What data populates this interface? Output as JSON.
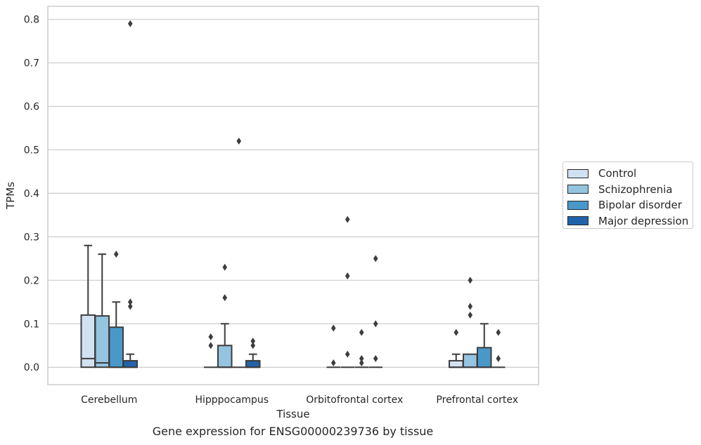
{
  "caption": "Gene expression for ENSG00000239736 by tissue",
  "chart_data": {
    "type": "box",
    "xlabel": "Tissue",
    "ylabel": "TPMs",
    "ylim": [
      -0.04,
      0.83
    ],
    "yticks": [
      0.0,
      0.1,
      0.2,
      0.3,
      0.4,
      0.5,
      0.6,
      0.7,
      0.8
    ],
    "ytick_labels": [
      "0.0",
      "0.1",
      "0.2",
      "0.3",
      "0.4",
      "0.5",
      "0.6",
      "0.7",
      "0.8"
    ],
    "grid": "horizontal",
    "legend_position": "right",
    "categories": [
      "Cerebellum",
      "Hipppocampus",
      "Orbitofrontal cortex",
      "Prefrontal cortex"
    ],
    "series": [
      {
        "name": "Control",
        "color": "#d0e1f2",
        "boxes": [
          {
            "q1": 0.0,
            "median": 0.02,
            "q3": 0.12,
            "whisker_low": 0.0,
            "whisker_high": 0.28,
            "outliers": []
          },
          {
            "q1": 0.0,
            "median": 0.0,
            "q3": 0.0,
            "whisker_low": 0.0,
            "whisker_high": 0.0,
            "outliers": [
              0.07,
              0.05
            ]
          },
          {
            "q1": 0.0,
            "median": 0.0,
            "q3": 0.0,
            "whisker_low": 0.0,
            "whisker_high": 0.0,
            "outliers": [
              0.09,
              0.01
            ]
          },
          {
            "q1": 0.0,
            "median": 0.0,
            "q3": 0.015,
            "whisker_low": 0.0,
            "whisker_high": 0.03,
            "outliers": [
              0.08
            ]
          }
        ]
      },
      {
        "name": "Schizophrenia",
        "color": "#94c4df",
        "boxes": [
          {
            "q1": 0.0,
            "median": 0.01,
            "q3": 0.118,
            "whisker_low": 0.0,
            "whisker_high": 0.26,
            "outliers": []
          },
          {
            "q1": 0.0,
            "median": 0.0,
            "q3": 0.05,
            "whisker_low": 0.0,
            "whisker_high": 0.1,
            "outliers": [
              0.23,
              0.16
            ]
          },
          {
            "q1": 0.0,
            "median": 0.0,
            "q3": 0.0,
            "whisker_low": 0.0,
            "whisker_high": 0.0,
            "outliers": [
              0.34,
              0.21,
              0.03
            ]
          },
          {
            "q1": 0.0,
            "median": 0.0,
            "q3": 0.03,
            "whisker_low": 0.0,
            "whisker_high": 0.03,
            "outliers": [
              0.2,
              0.14,
              0.12
            ]
          }
        ]
      },
      {
        "name": "Bipolar disorder",
        "color": "#4a98c9",
        "boxes": [
          {
            "q1": 0.0,
            "median": 0.0,
            "q3": 0.092,
            "whisker_low": 0.0,
            "whisker_high": 0.15,
            "outliers": [
              0.26
            ]
          },
          {
            "q1": 0.0,
            "median": 0.0,
            "q3": 0.0,
            "whisker_low": 0.0,
            "whisker_high": 0.0,
            "outliers": [
              0.52
            ]
          },
          {
            "q1": 0.0,
            "median": 0.0,
            "q3": 0.0,
            "whisker_low": 0.0,
            "whisker_high": 0.0,
            "outliers": [
              0.08,
              0.02,
              0.01
            ]
          },
          {
            "q1": 0.0,
            "median": 0.0,
            "q3": 0.045,
            "whisker_low": 0.0,
            "whisker_high": 0.1,
            "outliers": []
          }
        ]
      },
      {
        "name": "Major depression",
        "color": "#2163aa",
        "boxes": [
          {
            "q1": 0.0,
            "median": 0.0,
            "q3": 0.015,
            "whisker_low": 0.0,
            "whisker_high": 0.03,
            "outliers": [
              0.79,
              0.15,
              0.14
            ]
          },
          {
            "q1": 0.0,
            "median": 0.0,
            "q3": 0.015,
            "whisker_low": 0.0,
            "whisker_high": 0.03,
            "outliers": [
              0.06,
              0.05
            ]
          },
          {
            "q1": 0.0,
            "median": 0.0,
            "q3": 0.0,
            "whisker_low": 0.0,
            "whisker_high": 0.0,
            "outliers": [
              0.25,
              0.1,
              0.02
            ]
          },
          {
            "q1": 0.0,
            "median": 0.0,
            "q3": 0.0,
            "whisker_low": 0.0,
            "whisker_high": 0.0,
            "outliers": [
              0.08,
              0.02
            ]
          }
        ]
      }
    ]
  }
}
